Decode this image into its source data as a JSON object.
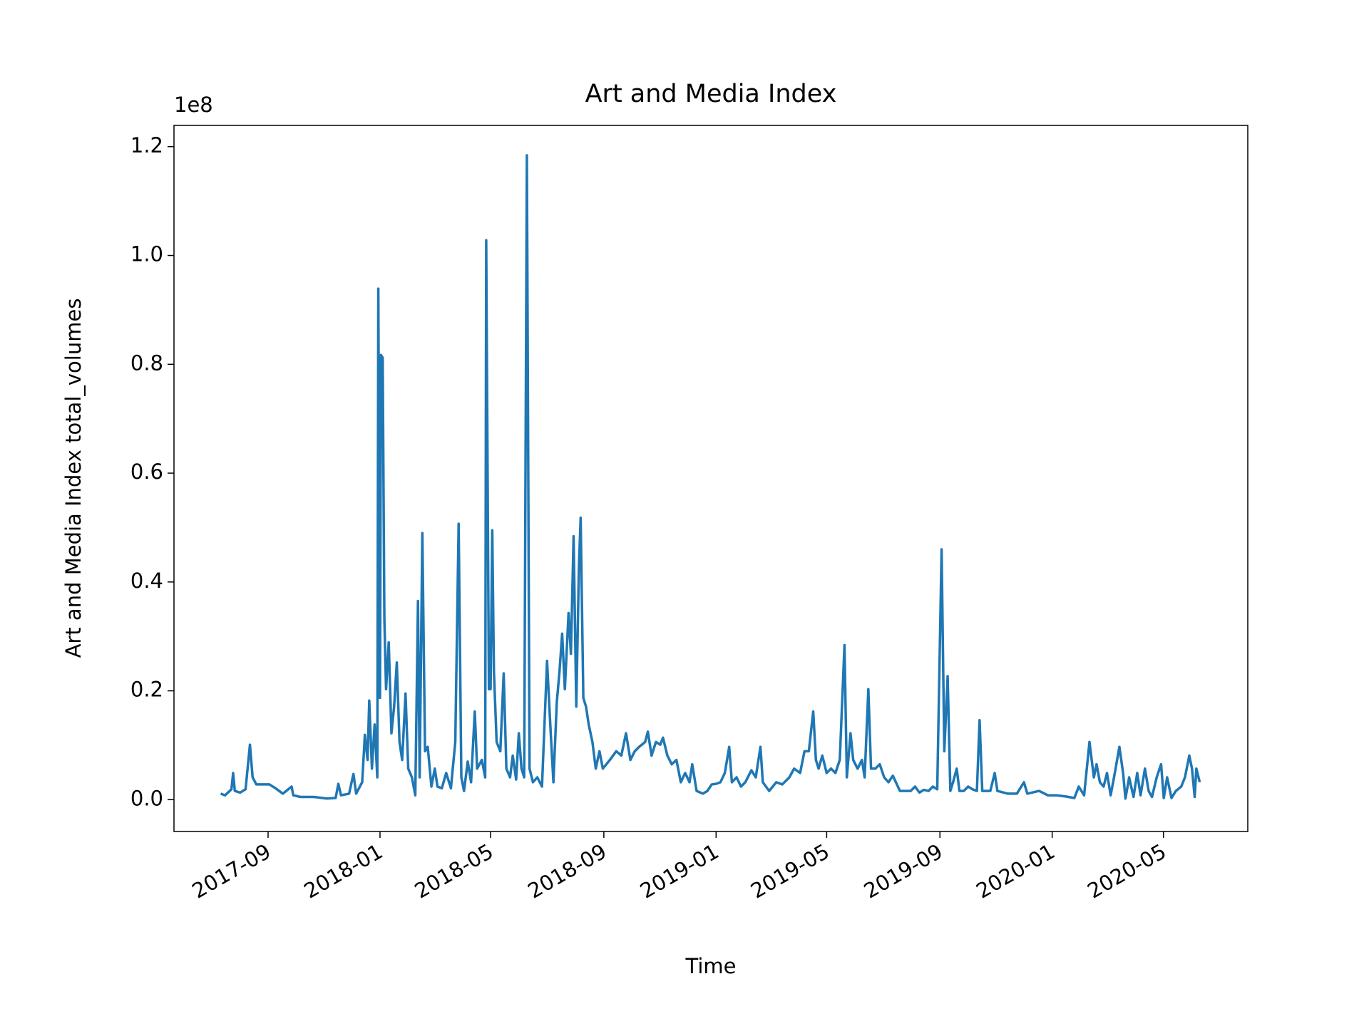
{
  "chart_data": {
    "type": "line",
    "title": "Art and Media Index",
    "xlabel": "Time",
    "ylabel": "Art and Media Index total_volumes",
    "y_offset_label": "1e8",
    "color": "#1f77b4",
    "grid": false,
    "xlim": [
      2017.387,
      2020.582
    ],
    "ylim": [
      -0.0585,
      1.239
    ],
    "xticks": [
      {
        "value": 2017.667,
        "label": "2017-09"
      },
      {
        "value": 2018.0,
        "label": "2018-01"
      },
      {
        "value": 2018.329,
        "label": "2018-05"
      },
      {
        "value": 2018.666,
        "label": "2018-09"
      },
      {
        "value": 2019.0,
        "label": "2019-01"
      },
      {
        "value": 2019.329,
        "label": "2019-05"
      },
      {
        "value": 2019.666,
        "label": "2019-09"
      },
      {
        "value": 2020.0,
        "label": "2020-01"
      },
      {
        "value": 2020.331,
        "label": "2020-05"
      }
    ],
    "yticks": [
      {
        "value": 0,
        "label": "0.0"
      },
      0.2,
      0.4,
      0.6,
      0.8,
      {
        "value": 1,
        "label": "1.0"
      },
      1.2
    ],
    "x": [
      2017.526,
      2017.539,
      2017.558,
      2017.563,
      2017.568,
      2017.584,
      2017.6,
      2017.613,
      2017.621,
      2017.632,
      2017.647,
      2017.671,
      2017.689,
      2017.711,
      2017.737,
      2017.742,
      2017.763,
      2017.803,
      2017.842,
      2017.868,
      2017.876,
      2017.884,
      2017.908,
      2017.921,
      2017.929,
      2017.947,
      2017.955,
      2017.963,
      2017.968,
      2017.976,
      2017.984,
      2017.992,
      2017.995,
      2018.0,
      2018.003,
      2018.008,
      2018.013,
      2018.018,
      2018.026,
      2018.034,
      2018.042,
      2018.05,
      2018.058,
      2018.066,
      2018.076,
      2018.084,
      2018.095,
      2018.105,
      2018.113,
      2018.118,
      2018.126,
      2018.134,
      2018.142,
      2018.153,
      2018.163,
      2018.171,
      2018.184,
      2018.197,
      2018.211,
      2018.224,
      2018.234,
      2018.242,
      2018.25,
      2018.261,
      2018.271,
      2018.282,
      2018.289,
      2018.303,
      2018.313,
      2018.316,
      2018.324,
      2018.329,
      2018.334,
      2018.339,
      2018.347,
      2018.358,
      2018.368,
      2018.376,
      2018.387,
      2018.395,
      2018.405,
      2018.413,
      2018.421,
      2018.429,
      2018.437,
      2018.445,
      2018.455,
      2018.468,
      2018.482,
      2018.497,
      2018.508,
      2018.516,
      2018.526,
      2018.534,
      2018.542,
      2018.55,
      2018.561,
      2018.568,
      2018.576,
      2018.584,
      2018.592,
      2018.597,
      2018.605,
      2018.613,
      2018.621,
      2018.632,
      2018.642,
      2018.653,
      2018.663,
      2018.684,
      2018.703,
      2018.718,
      2018.732,
      2018.745,
      2018.758,
      2018.771,
      2018.789,
      2018.797,
      2018.808,
      2018.821,
      2018.834,
      2018.842,
      2018.855,
      2018.868,
      2018.882,
      2018.895,
      2018.908,
      2018.921,
      2018.929,
      2018.942,
      2018.961,
      2018.974,
      2018.987,
      2019.0,
      2019.013,
      2019.026,
      2019.039,
      2019.047,
      2019.061,
      2019.074,
      2019.087,
      2019.105,
      2019.118,
      2019.132,
      2019.139,
      2019.158,
      2019.179,
      2019.197,
      2019.218,
      2019.232,
      2019.25,
      2019.263,
      2019.276,
      2019.289,
      2019.297,
      2019.305,
      2019.316,
      2019.329,
      2019.342,
      2019.355,
      2019.368,
      2019.382,
      2019.389,
      2019.4,
      2019.408,
      2019.421,
      2019.434,
      2019.442,
      2019.453,
      2019.461,
      2019.474,
      2019.487,
      2019.5,
      2019.513,
      2019.526,
      2019.547,
      2019.566,
      2019.579,
      2019.592,
      2019.605,
      2019.618,
      2019.632,
      2019.645,
      2019.658,
      2019.671,
      2019.679,
      2019.689,
      2019.697,
      2019.705,
      2019.716,
      2019.724,
      2019.737,
      2019.75,
      2019.763,
      2019.776,
      2019.784,
      2019.792,
      2019.816,
      2019.829,
      2019.837,
      2019.868,
      2019.895,
      2019.916,
      2019.926,
      2019.961,
      2019.987,
      2020.013,
      2020.039,
      2020.066,
      2020.079,
      2020.095,
      2020.111,
      2020.124,
      2020.132,
      2020.142,
      2020.153,
      2020.163,
      2020.174,
      2020.184,
      2020.2,
      2020.211,
      2020.218,
      2020.229,
      2020.242,
      2020.253,
      2020.263,
      2020.276,
      2020.287,
      2020.297,
      2020.311,
      2020.324,
      2020.332,
      2020.342,
      2020.355,
      2020.368,
      2020.384,
      2020.395,
      2020.408,
      2020.416,
      2020.424,
      2020.429,
      2020.439
    ],
    "values": [
      0.011,
      0.008,
      0.019,
      0.049,
      0.016,
      0.013,
      0.019,
      0.101,
      0.041,
      0.028,
      0.028,
      0.028,
      0.021,
      0.011,
      0.024,
      0.008,
      0.005,
      0.005,
      0.002,
      0.003,
      0.029,
      0.008,
      0.011,
      0.047,
      0.011,
      0.032,
      0.119,
      0.073,
      0.182,
      0.057,
      0.138,
      0.041,
      0.939,
      0.187,
      0.817,
      0.812,
      0.333,
      0.203,
      0.289,
      0.122,
      0.171,
      0.252,
      0.106,
      0.073,
      0.195,
      0.057,
      0.041,
      0.008,
      0.365,
      0.041,
      0.49,
      0.089,
      0.097,
      0.024,
      0.057,
      0.024,
      0.021,
      0.049,
      0.021,
      0.106,
      0.507,
      0.041,
      0.016,
      0.07,
      0.032,
      0.162,
      0.057,
      0.073,
      0.041,
      1.028,
      0.203,
      0.203,
      0.495,
      0.235,
      0.106,
      0.089,
      0.232,
      0.057,
      0.041,
      0.081,
      0.037,
      0.122,
      0.057,
      0.041,
      1.184,
      0.057,
      0.032,
      0.041,
      0.024,
      0.255,
      0.122,
      0.032,
      0.179,
      0.235,
      0.305,
      0.203,
      0.343,
      0.268,
      0.484,
      0.171,
      0.43,
      0.518,
      0.187,
      0.171,
      0.138,
      0.106,
      0.057,
      0.089,
      0.057,
      0.073,
      0.089,
      0.081,
      0.122,
      0.073,
      0.089,
      0.097,
      0.106,
      0.125,
      0.081,
      0.106,
      0.101,
      0.114,
      0.081,
      0.065,
      0.073,
      0.032,
      0.049,
      0.032,
      0.065,
      0.016,
      0.011,
      0.016,
      0.028,
      0.029,
      0.032,
      0.049,
      0.097,
      0.032,
      0.041,
      0.024,
      0.032,
      0.054,
      0.041,
      0.097,
      0.032,
      0.016,
      0.032,
      0.028,
      0.041,
      0.057,
      0.049,
      0.089,
      0.089,
      0.162,
      0.073,
      0.057,
      0.081,
      0.049,
      0.057,
      0.049,
      0.073,
      0.284,
      0.041,
      0.122,
      0.073,
      0.057,
      0.073,
      0.041,
      0.203,
      0.057,
      0.057,
      0.065,
      0.041,
      0.032,
      0.044,
      0.016,
      0.016,
      0.016,
      0.024,
      0.013,
      0.018,
      0.016,
      0.024,
      0.019,
      0.46,
      0.089,
      0.227,
      0.016,
      0.032,
      0.057,
      0.016,
      0.016,
      0.024,
      0.019,
      0.016,
      0.146,
      0.016,
      0.016,
      0.049,
      0.016,
      0.011,
      0.011,
      0.032,
      0.011,
      0.016,
      0.008,
      0.008,
      0.006,
      0.003,
      0.024,
      0.008,
      0.106,
      0.041,
      0.065,
      0.032,
      0.024,
      0.049,
      0.008,
      0.041,
      0.097,
      0.049,
      0.002,
      0.041,
      0.005,
      0.049,
      0.008,
      0.057,
      0.016,
      0.005,
      0.041,
      0.065,
      0.003,
      0.041,
      0.003,
      0.016,
      0.024,
      0.041,
      0.081,
      0.057,
      0.005,
      0.057,
      0.032
    ]
  }
}
